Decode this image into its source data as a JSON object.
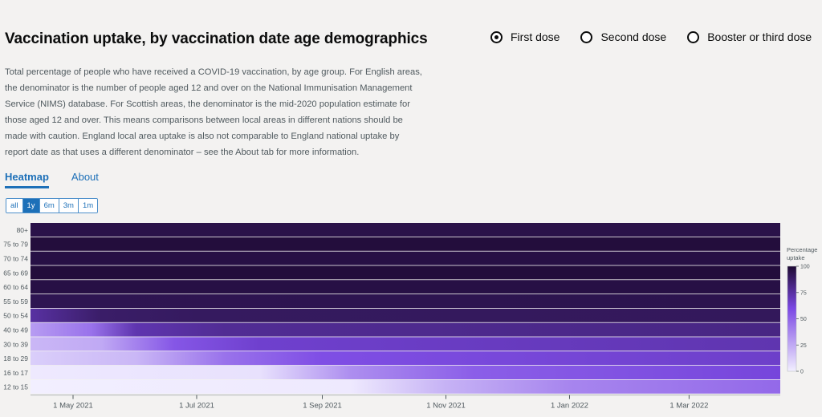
{
  "header": {
    "title": "Vaccination uptake, by vaccination date age demographics",
    "description": "Total percentage of people who have received a COVID-19 vaccination, by age group. For English areas, the denominator is the number of people aged 12 and over on the National Immunisation Management Service (NIMS) database. For Scottish areas, the denominator is the mid-2020 population estimate for those aged 12 and over. This means comparisons between local areas in different nations should be made with caution. England local area uptake is also not comparable to England national uptake by report date as that uses a different denominator – see the About tab for more information."
  },
  "dose_options": [
    {
      "label": "First dose",
      "selected": true
    },
    {
      "label": "Second dose",
      "selected": false
    },
    {
      "label": "Booster or third dose",
      "selected": false
    }
  ],
  "tabs": [
    {
      "label": "Heatmap",
      "active": true
    },
    {
      "label": "About",
      "active": false
    }
  ],
  "range_buttons": [
    {
      "label": "all",
      "active": false
    },
    {
      "label": "1y",
      "active": true
    },
    {
      "label": "6m",
      "active": false
    },
    {
      "label": "3m",
      "active": false
    },
    {
      "label": "1m",
      "active": false
    }
  ],
  "colors": {
    "low": "#f2efff",
    "mid": "#7b48e4",
    "high": "#1e0a33"
  },
  "chart_data": {
    "type": "heatmap",
    "x_range": [
      "2021-04-10",
      "2022-04-15"
    ],
    "x_ticks": [
      "1 May 2021",
      "1 Jul 2021",
      "1 Sep 2021",
      "1 Nov 2021",
      "1 Jan 2022",
      "1 Mar 2022"
    ],
    "x_tick_dates": [
      "2021-05-01",
      "2021-07-01",
      "2021-09-01",
      "2021-11-01",
      "2022-01-01",
      "2022-03-01"
    ],
    "rows": [
      {
        "label": "80+",
        "points": [
          [
            "2021-04-10",
            95
          ],
          [
            "2022-04-15",
            95
          ]
        ]
      },
      {
        "label": "75 to 79",
        "points": [
          [
            "2021-04-10",
            98
          ],
          [
            "2022-04-15",
            98
          ]
        ]
      },
      {
        "label": "70 to 74",
        "points": [
          [
            "2021-04-10",
            96
          ],
          [
            "2022-04-15",
            96
          ]
        ]
      },
      {
        "label": "65 to 69",
        "points": [
          [
            "2021-04-10",
            98
          ],
          [
            "2022-04-15",
            98
          ]
        ]
      },
      {
        "label": "60 to 64",
        "points": [
          [
            "2021-04-10",
            96
          ],
          [
            "2022-04-15",
            96
          ]
        ]
      },
      {
        "label": "55 to 59",
        "points": [
          [
            "2021-04-10",
            93
          ],
          [
            "2022-04-15",
            94
          ]
        ]
      },
      {
        "label": "50 to 54",
        "points": [
          [
            "2021-04-10",
            75
          ],
          [
            "2021-05-15",
            88
          ],
          [
            "2021-07-01",
            90
          ],
          [
            "2022-04-15",
            91
          ]
        ]
      },
      {
        "label": "40 to 49",
        "points": [
          [
            "2021-04-10",
            30
          ],
          [
            "2021-05-10",
            45
          ],
          [
            "2021-06-01",
            72
          ],
          [
            "2021-07-15",
            78
          ],
          [
            "2022-04-15",
            82
          ]
        ]
      },
      {
        "label": "30 to 39",
        "points": [
          [
            "2021-04-10",
            20
          ],
          [
            "2021-05-15",
            25
          ],
          [
            "2021-06-20",
            55
          ],
          [
            "2021-08-01",
            65
          ],
          [
            "2022-04-15",
            72
          ]
        ]
      },
      {
        "label": "18 to 29",
        "points": [
          [
            "2021-04-10",
            12
          ],
          [
            "2021-06-01",
            20
          ],
          [
            "2021-07-15",
            45
          ],
          [
            "2021-09-01",
            58
          ],
          [
            "2022-04-15",
            66
          ]
        ]
      },
      {
        "label": "16 to 17",
        "points": [
          [
            "2021-04-10",
            2
          ],
          [
            "2021-08-01",
            5
          ],
          [
            "2021-09-15",
            35
          ],
          [
            "2021-11-15",
            52
          ],
          [
            "2022-04-15",
            62
          ]
        ]
      },
      {
        "label": "12 to 15",
        "points": [
          [
            "2021-04-10",
            0
          ],
          [
            "2021-09-15",
            2
          ],
          [
            "2021-11-01",
            22
          ],
          [
            "2022-01-01",
            38
          ],
          [
            "2022-04-15",
            48
          ]
        ]
      }
    ],
    "legend": {
      "title_lines": [
        "Percentage",
        "uptake"
      ],
      "ticks": [
        0,
        25,
        50,
        75,
        100
      ],
      "range": [
        0,
        100
      ],
      "placement": "right"
    }
  }
}
